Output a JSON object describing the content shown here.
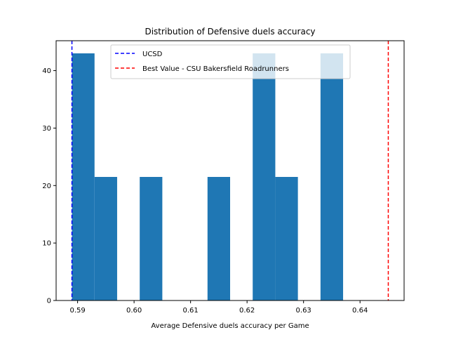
{
  "chart_data": {
    "type": "bar",
    "title": "Distribution of Defensive duels accuracy",
    "xlabel": "Average Defensive duels accuracy per Game",
    "ylabel": "",
    "xlim": [
      0.5862,
      0.6478
    ],
    "ylim": [
      0,
      45.2
    ],
    "xticks": [
      0.59,
      0.6,
      0.61,
      0.62,
      0.63,
      0.64
    ],
    "xtick_labels": [
      "0.59",
      "0.60",
      "0.61",
      "0.62",
      "0.63",
      "0.64"
    ],
    "yticks": [
      0,
      10,
      20,
      30,
      40
    ],
    "ytick_labels": [
      "0",
      "10",
      "20",
      "30",
      "40"
    ],
    "bin_edges": [
      0.589,
      0.593,
      0.597,
      0.601,
      0.605,
      0.609,
      0.613,
      0.617,
      0.621,
      0.625,
      0.629,
      0.633,
      0.637,
      0.641,
      0.645
    ],
    "counts": [
      43,
      21.5,
      0,
      21.5,
      0,
      0,
      21.5,
      0,
      43,
      21.5,
      0,
      43,
      0,
      0
    ],
    "bar_color": "#1f77b4",
    "grid": false,
    "vlines": [
      {
        "label": "UCSD",
        "x": 0.589,
        "color": "#0000ff",
        "style": "dashed"
      },
      {
        "label": "Best Value - CSU Bakersfield Roadrunners",
        "x": 0.645,
        "color": "#ff0000",
        "style": "dashed"
      }
    ],
    "legend_position": "top-center"
  }
}
